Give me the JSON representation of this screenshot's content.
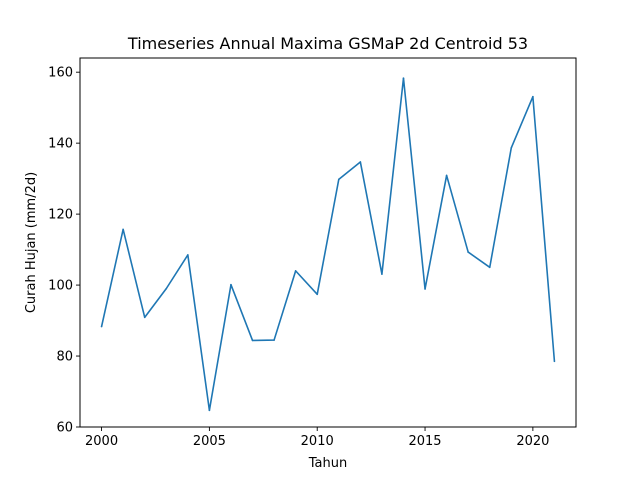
{
  "chart_data": {
    "type": "line",
    "title": "Timeseries Annual Maxima GSMaP 2d Centroid 53",
    "xlabel": "Tahun",
    "ylabel": "Curah Hujan (mm/2d)",
    "xlim": [
      1999.0,
      2022.0
    ],
    "ylim": [
      60,
      164
    ],
    "xticks": [
      2000,
      2005,
      2010,
      2015,
      2020
    ],
    "yticks": [
      60,
      80,
      100,
      120,
      140,
      160
    ],
    "xtick_labels": [
      "2000",
      "2005",
      "2010",
      "2015",
      "2020"
    ],
    "ytick_labels": [
      "60",
      "80",
      "100",
      "120",
      "140",
      "160"
    ],
    "grid": false,
    "line_color": "#1f77b4",
    "series": [
      {
        "x": [
          2000,
          2001,
          2002,
          2003,
          2004,
          2005,
          2006,
          2007,
          2008,
          2009,
          2010,
          2011,
          2012,
          2013,
          2014,
          2015,
          2016,
          2017,
          2018,
          2019,
          2020,
          2021
        ],
        "values": [
          88.3,
          115.7,
          90.9,
          99.0,
          108.5,
          64.7,
          100.1,
          84.4,
          84.5,
          104.0,
          97.4,
          129.8,
          134.7,
          103.1,
          158.3,
          98.9,
          130.9,
          109.3,
          105.0,
          138.7,
          153.1,
          78.5
        ]
      }
    ]
  }
}
